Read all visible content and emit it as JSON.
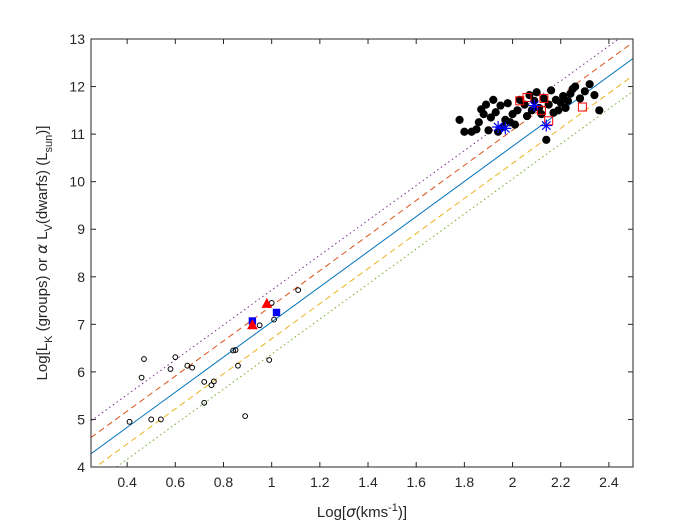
{
  "chart_data": {
    "type": "scatter",
    "xlabel": {
      "pre": "Log[",
      "sigma": "σ",
      "mid": "(kms",
      "sup": "-1",
      "post": ")]"
    },
    "ylabel": {
      "p1": "Log[L",
      "sub1": "K",
      "p2": " (groups) or ",
      "alpha": "α",
      "p3": " L",
      "sub2": "V",
      "p4": "(dwarfs) (L",
      "sub3": "sun",
      "p5": ")]"
    },
    "xlim": [
      0.25,
      2.5
    ],
    "ylim": [
      4,
      13
    ],
    "x_ticks": [
      0.4,
      0.6,
      0.8,
      1,
      1.2,
      1.4,
      1.6,
      1.8,
      2,
      2.2,
      2.4
    ],
    "x_tick_labels": [
      "0.4",
      "0.6",
      "0.8",
      "1",
      "1.2",
      "1.4",
      "1.6",
      "1.8",
      "2",
      "2.2",
      "2.4"
    ],
    "y_ticks": [
      4,
      5,
      6,
      7,
      8,
      9,
      10,
      11,
      12,
      13
    ],
    "y_tick_labels": [
      "4",
      "5",
      "6",
      "7",
      "8",
      "9",
      "10",
      "11",
      "12",
      "13"
    ],
    "grid": false,
    "lines": [
      {
        "style": "dotted",
        "color": "#7E2F8E",
        "points": [
          [
            0.25,
            4.97
          ],
          [
            2.5,
            13.22
          ]
        ]
      },
      {
        "style": "dashed",
        "color": "#D95319",
        "points": [
          [
            0.25,
            4.62
          ],
          [
            2.5,
            12.93
          ]
        ]
      },
      {
        "style": "solid",
        "color": "#0072BD",
        "points": [
          [
            0.25,
            4.28
          ],
          [
            2.5,
            12.59
          ]
        ]
      },
      {
        "style": "dashed",
        "color": "#EDB120",
        "points": [
          [
            0.25,
            3.93
          ],
          [
            2.5,
            12.23
          ]
        ]
      },
      {
        "style": "dotted",
        "color": "#77AC30",
        "points": [
          [
            0.25,
            3.61
          ],
          [
            2.5,
            11.9
          ]
        ]
      }
    ],
    "series": [
      {
        "marker": "open-circle",
        "color": "#000000",
        "points": [
          [
            0.41,
            4.95
          ],
          [
            0.46,
            5.88
          ],
          [
            0.47,
            6.27
          ],
          [
            0.5,
            5.0
          ],
          [
            0.54,
            5.0
          ],
          [
            0.58,
            6.06
          ],
          [
            0.6,
            6.31
          ],
          [
            0.65,
            6.13
          ],
          [
            0.67,
            6.09
          ],
          [
            0.72,
            5.35
          ],
          [
            0.72,
            5.79
          ],
          [
            0.75,
            5.72
          ],
          [
            0.76,
            5.8
          ],
          [
            0.84,
            6.45
          ],
          [
            0.85,
            6.46
          ],
          [
            0.86,
            6.13
          ],
          [
            0.89,
            5.07
          ],
          [
            0.95,
            6.98
          ],
          [
            0.99,
            6.25
          ],
          [
            1.0,
            7.45
          ],
          [
            1.01,
            7.1
          ],
          [
            1.11,
            7.72
          ]
        ]
      },
      {
        "marker": "filled-circle",
        "color": "#000000",
        "points": [
          [
            1.78,
            11.3
          ],
          [
            1.8,
            11.05
          ],
          [
            1.83,
            11.05
          ],
          [
            1.85,
            11.1
          ],
          [
            1.86,
            11.25
          ],
          [
            1.87,
            11.52
          ],
          [
            1.88,
            11.42
          ],
          [
            1.89,
            11.62
          ],
          [
            1.9,
            11.08
          ],
          [
            1.91,
            11.35
          ],
          [
            1.92,
            11.72
          ],
          [
            1.93,
            11.46
          ],
          [
            1.94,
            11.05
          ],
          [
            1.95,
            11.6
          ],
          [
            1.96,
            11.15
          ],
          [
            1.97,
            11.3
          ],
          [
            1.98,
            11.65
          ],
          [
            1.99,
            11.25
          ],
          [
            2.0,
            11.42
          ],
          [
            2.01,
            11.2
          ],
          [
            2.02,
            11.5
          ],
          [
            2.03,
            11.72
          ],
          [
            2.05,
            11.62
          ],
          [
            2.06,
            11.38
          ],
          [
            2.07,
            11.82
          ],
          [
            2.08,
            11.5
          ],
          [
            2.09,
            11.7
          ],
          [
            2.1,
            11.88
          ],
          [
            2.11,
            11.55
          ],
          [
            2.12,
            11.42
          ],
          [
            2.13,
            11.75
          ],
          [
            2.14,
            10.88
          ],
          [
            2.15,
            11.62
          ],
          [
            2.16,
            11.92
          ],
          [
            2.17,
            11.45
          ],
          [
            2.18,
            11.72
          ],
          [
            2.19,
            11.5
          ],
          [
            2.2,
            11.66
          ],
          [
            2.21,
            11.8
          ],
          [
            2.22,
            11.55
          ],
          [
            2.23,
            11.7
          ],
          [
            2.24,
            11.85
          ],
          [
            2.25,
            11.95
          ],
          [
            2.26,
            12.0
          ],
          [
            2.28,
            11.75
          ],
          [
            2.3,
            11.9
          ],
          [
            2.32,
            12.05
          ],
          [
            2.34,
            11.82
          ],
          [
            2.36,
            11.5
          ]
        ]
      },
      {
        "marker": "open-square",
        "color": "#FF0000",
        "points": [
          [
            2.03,
            11.7
          ],
          [
            2.06,
            11.77
          ],
          [
            2.12,
            11.5
          ],
          [
            2.13,
            11.75
          ],
          [
            2.15,
            11.28
          ],
          [
            2.29,
            11.57
          ]
        ]
      },
      {
        "marker": "star",
        "color": "#0000FF",
        "points": [
          [
            1.94,
            11.15
          ],
          [
            1.97,
            11.12
          ],
          [
            2.09,
            11.6
          ],
          [
            2.14,
            11.18
          ]
        ]
      },
      {
        "marker": "filled-square",
        "color": "#0000FF",
        "points": [
          [
            0.92,
            7.07
          ],
          [
            1.02,
            7.25
          ]
        ]
      },
      {
        "marker": "filled-triangle",
        "color": "#FF0000",
        "points": [
          [
            0.92,
            6.98
          ],
          [
            0.98,
            7.43
          ]
        ]
      }
    ]
  }
}
